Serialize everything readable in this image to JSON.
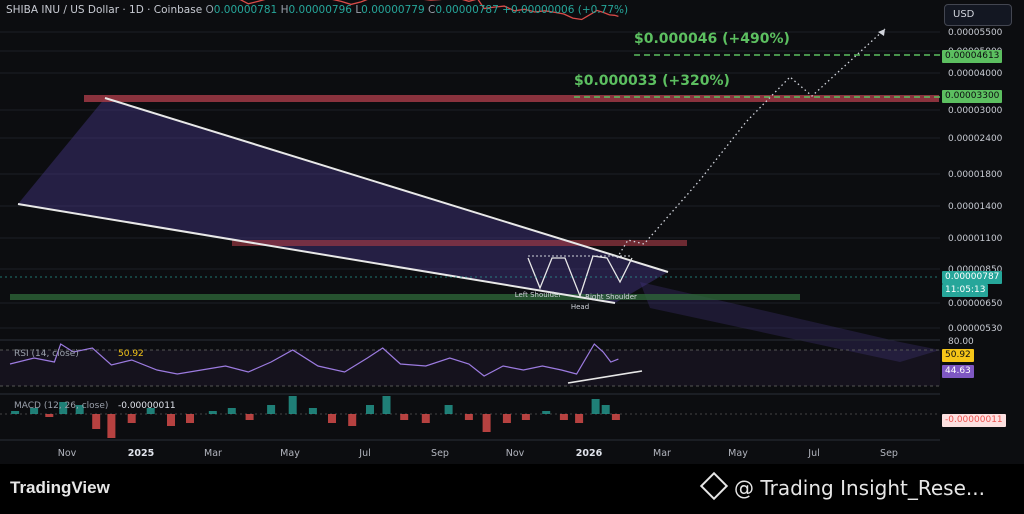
{
  "header": {
    "title": "SHIBA INU / US Dollar · 1D · Coinbase",
    "o_label": "O",
    "o_value": "0.00000781",
    "h_label": "H",
    "h_value": "0.00000796",
    "l_label": "L",
    "l_value": "0.00000779",
    "c_label": "C",
    "c_value": "0.00000787",
    "change": "+0.00000006 (+0.77%)"
  },
  "toolbar": {
    "currency_label": "USD"
  },
  "chart_data": {
    "type": "line",
    "scale": "log",
    "x_ticks": [
      "Nov",
      "2025",
      "Mar",
      "May",
      "Jul",
      "Sep",
      "Nov",
      "2026",
      "Mar",
      "May",
      "Jul",
      "Sep"
    ],
    "y_ticks": [
      "0.00005500",
      "0.00005000",
      "0.00004000",
      "0.00003000",
      "0.00002400",
      "0.00001800",
      "0.00001400",
      "0.00001100",
      "0.00000850",
      "0.00000650",
      "0.00000530"
    ],
    "price_series": [
      [
        "2024-10-01",
        1.4e-05
      ],
      [
        "2024-10-08",
        1.72e-05
      ],
      [
        "2024-10-16",
        1.8e-05
      ],
      [
        "2024-10-24",
        1.78e-05
      ],
      [
        "2024-11-01",
        1.81e-05
      ],
      [
        "2024-11-05",
        1.79e-05
      ],
      [
        "2024-11-09",
        2.4e-05
      ],
      [
        "2024-11-13",
        2.65e-05
      ],
      [
        "2024-11-20",
        2.55e-05
      ],
      [
        "2024-11-28",
        2.7e-05
      ],
      [
        "2024-12-05",
        3.1e-05
      ],
      [
        "2024-12-10",
        2.9e-05
      ],
      [
        "2024-12-17",
        2.75e-05
      ],
      [
        "2024-12-24",
        2.35e-05
      ],
      [
        "2024-12-31",
        2.2e-05
      ],
      [
        "2025-01-07",
        2.3e-05
      ],
      [
        "2025-01-15",
        2.25e-05
      ],
      [
        "2025-01-22",
        2.15e-05
      ],
      [
        "2025-01-29",
        1.95e-05
      ],
      [
        "2025-02-04",
        1.7e-05
      ],
      [
        "2025-02-12",
        1.6e-05
      ],
      [
        "2025-02-20",
        1.55e-05
      ],
      [
        "2025-02-28",
        1.4e-05
      ],
      [
        "2025-03-08",
        1.32e-05
      ],
      [
        "2025-03-16",
        1.28e-05
      ],
      [
        "2025-03-24",
        1.35e-05
      ],
      [
        "2025-04-01",
        1.25e-05
      ],
      [
        "2025-04-07",
        1.12e-05
      ],
      [
        "2025-04-15",
        1.2e-05
      ],
      [
        "2025-04-23",
        1.3e-05
      ],
      [
        "2025-05-01",
        1.35e-05
      ],
      [
        "2025-05-10",
        1.65e-05
      ],
      [
        "2025-05-18",
        1.58e-05
      ],
      [
        "2025-05-26",
        1.5e-05
      ],
      [
        "2025-06-03",
        1.35e-05
      ],
      [
        "2025-06-11",
        1.28e-05
      ],
      [
        "2025-06-19",
        1.2e-05
      ],
      [
        "2025-06-27",
        1.1e-05
      ],
      [
        "2025-07-05",
        1.18e-05
      ],
      [
        "2025-07-12",
        1.3e-05
      ],
      [
        "2025-07-20",
        1.48e-05
      ],
      [
        "2025-07-28",
        1.42e-05
      ],
      [
        "2025-08-05",
        1.3e-05
      ],
      [
        "2025-08-13",
        1.36e-05
      ],
      [
        "2025-08-21",
        1.28e-05
      ],
      [
        "2025-08-29",
        1.24e-05
      ],
      [
        "2025-09-06",
        1.26e-05
      ],
      [
        "2025-09-13",
        1.38e-05
      ],
      [
        "2025-09-20",
        1.3e-05
      ],
      [
        "2025-09-28",
        1.2e-05
      ],
      [
        "2025-10-05",
        1.28e-05
      ],
      [
        "2025-10-10",
        9.8e-06
      ],
      [
        "2025-10-18",
        1.02e-05
      ],
      [
        "2025-10-26",
        1.05e-05
      ],
      [
        "2025-11-03",
        9.2e-06
      ],
      [
        "2025-11-11",
        9.6e-06
      ],
      [
        "2025-11-19",
        8.9e-06
      ],
      [
        "2025-11-27",
        9.2e-06
      ],
      [
        "2025-12-05",
        8.8e-06
      ],
      [
        "2025-12-12",
        8.4e-06
      ],
      [
        "2025-12-19",
        7.5e-06
      ],
      [
        "2025-12-26",
        7.2e-06
      ],
      [
        "2026-01-03",
        8.5e-06
      ],
      [
        "2026-01-07",
        9.3e-06
      ],
      [
        "2026-01-12",
        8.8e-06
      ],
      [
        "2026-01-17",
        8.2e-06
      ],
      [
        "2026-01-21",
        8.1e-06
      ],
      [
        "2026-01-24",
        7.87e-06
      ]
    ],
    "current_price": "0.00000787",
    "countdown": "11:05:13",
    "targets": [
      {
        "label": "$0.000046 (+490%)",
        "price": 4.613e-05,
        "tag": "0.00004613"
      },
      {
        "label": "$0.000033 (+320%)",
        "price": 3.3e-05,
        "tag": "0.00003300"
      }
    ],
    "pattern_labels": [
      "Left Shoulder",
      "Head",
      "Right Shoulder"
    ],
    "rsi": {
      "label": "RSI (14, close)",
      "value": "50.92",
      "ma_value": "44.63",
      "level_label": "80.00",
      "series": [
        [
          "2024-10-01",
          46
        ],
        [
          "2024-10-20",
          52
        ],
        [
          "2024-11-05",
          48
        ],
        [
          "2024-11-10",
          66
        ],
        [
          "2024-11-20",
          58
        ],
        [
          "2024-12-05",
          62
        ],
        [
          "2024-12-20",
          45
        ],
        [
          "2025-01-05",
          50
        ],
        [
          "2025-01-25",
          40
        ],
        [
          "2025-02-10",
          36
        ],
        [
          "2025-03-01",
          40
        ],
        [
          "2025-03-20",
          44
        ],
        [
          "2025-04-07",
          38
        ],
        [
          "2025-04-25",
          48
        ],
        [
          "2025-05-12",
          60
        ],
        [
          "2025-06-01",
          44
        ],
        [
          "2025-06-22",
          38
        ],
        [
          "2025-07-10",
          52
        ],
        [
          "2025-07-22",
          62
        ],
        [
          "2025-08-05",
          46
        ],
        [
          "2025-08-25",
          44
        ],
        [
          "2025-09-13",
          52
        ],
        [
          "2025-09-28",
          46
        ],
        [
          "2025-10-10",
          34
        ],
        [
          "2025-10-25",
          44
        ],
        [
          "2025-11-10",
          40
        ],
        [
          "2025-11-25",
          44
        ],
        [
          "2025-12-10",
          40
        ],
        [
          "2025-12-22",
          36
        ],
        [
          "2026-01-05",
          66
        ],
        [
          "2026-01-12",
          58
        ],
        [
          "2026-01-18",
          48
        ],
        [
          "2026-01-24",
          50.92
        ]
      ]
    },
    "macd": {
      "label": "MACD (12, 26, close)",
      "value": "-0.00000011",
      "histogram": [
        [
          "2024-10-05",
          1
        ],
        [
          "2024-10-20",
          2
        ],
        [
          "2024-11-01",
          -1
        ],
        [
          "2024-11-12",
          4
        ],
        [
          "2024-11-25",
          3
        ],
        [
          "2024-12-08",
          -5
        ],
        [
          "2024-12-20",
          -8
        ],
        [
          "2025-01-05",
          -3
        ],
        [
          "2025-01-20",
          2
        ],
        [
          "2025-02-05",
          -4
        ],
        [
          "2025-02-20",
          -3
        ],
        [
          "2025-03-10",
          1
        ],
        [
          "2025-03-25",
          2
        ],
        [
          "2025-04-08",
          -2
        ],
        [
          "2025-04-25",
          3
        ],
        [
          "2025-05-12",
          6
        ],
        [
          "2025-05-28",
          2
        ],
        [
          "2025-06-12",
          -3
        ],
        [
          "2025-06-28",
          -4
        ],
        [
          "2025-07-12",
          3
        ],
        [
          "2025-07-25",
          6
        ],
        [
          "2025-08-08",
          -2
        ],
        [
          "2025-08-25",
          -3
        ],
        [
          "2025-09-12",
          3
        ],
        [
          "2025-09-28",
          -2
        ],
        [
          "2025-10-12",
          -6
        ],
        [
          "2025-10-28",
          -3
        ],
        [
          "2025-11-12",
          -2
        ],
        [
          "2025-11-28",
          1
        ],
        [
          "2025-12-12",
          -2
        ],
        [
          "2025-12-24",
          -3
        ],
        [
          "2026-01-06",
          5
        ],
        [
          "2026-01-14",
          3
        ],
        [
          "2026-01-22",
          -2
        ]
      ]
    },
    "colors": {
      "background": "#0c0d10",
      "up": "#26a69a",
      "down": "#ef5350",
      "target": "#5cbf60",
      "wedge_fill": "#4a3a8c",
      "resistance_zone": "#a13a45",
      "support_zone": "#2f6a3a",
      "rsi_line": "#9c7be0"
    }
  },
  "footer": {
    "brand": "TradingView",
    "watermark": "@ Trading Insight_Rese..."
  }
}
